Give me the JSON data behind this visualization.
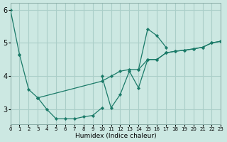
{
  "xlabel": "Humidex (Indice chaleur)",
  "bg_color": "#cce8e2",
  "grid_color": "#aacec8",
  "line_color": "#1a7a68",
  "xlim": [
    0,
    23
  ],
  "ylim": [
    2.55,
    6.2
  ],
  "yticks": [
    3,
    4,
    5,
    6
  ],
  "xticks": [
    0,
    1,
    2,
    3,
    4,
    5,
    6,
    7,
    8,
    9,
    10,
    11,
    12,
    13,
    14,
    15,
    16,
    17,
    18,
    19,
    20,
    21,
    22,
    23
  ],
  "lines": [
    [
      [
        0,
        1
      ],
      [
        6.0,
        4.65
      ]
    ],
    [
      [
        1,
        2,
        3
      ],
      [
        4.65,
        3.6,
        3.35
      ]
    ],
    [
      [
        3,
        4,
        5,
        6,
        7,
        8,
        9,
        10
      ],
      [
        3.35,
        3.0,
        2.72,
        2.72,
        2.72,
        2.78,
        2.82,
        3.05
      ]
    ],
    [
      [
        3,
        10,
        11,
        12,
        13,
        14,
        15,
        16,
        17,
        18,
        19,
        20,
        21,
        22,
        23
      ],
      [
        3.35,
        3.85,
        4.0,
        4.15,
        4.2,
        4.2,
        4.5,
        4.5,
        4.7,
        4.75,
        4.78,
        4.82,
        4.87,
        5.0,
        5.05
      ]
    ],
    [
      [
        10,
        11,
        12,
        13,
        14,
        15,
        16,
        17,
        18,
        19,
        20,
        21,
        22,
        23
      ],
      [
        4.0,
        3.05,
        3.45,
        4.15,
        3.65,
        4.5,
        4.5,
        4.7,
        4.75,
        4.78,
        4.82,
        4.87,
        5.0,
        5.05
      ]
    ],
    [
      [
        14,
        15,
        16,
        17
      ],
      [
        4.2,
        5.42,
        5.22,
        4.87
      ]
    ]
  ]
}
